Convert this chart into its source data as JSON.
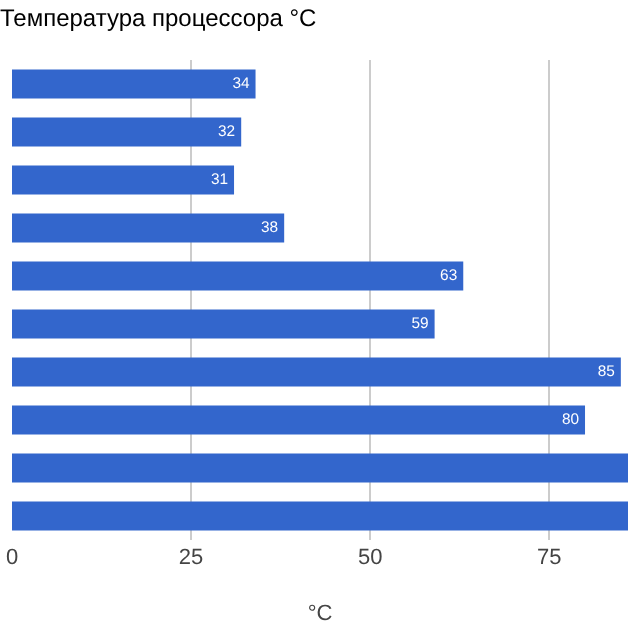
{
  "chart_data": {
    "type": "bar",
    "orientation": "horizontal",
    "title": "Температура процессора °C",
    "xlabel": "°C",
    "categories": [
      null,
      null,
      null,
      null,
      null,
      null,
      null,
      null,
      null,
      null
    ],
    "values": [
      34,
      32,
      31,
      38,
      63,
      59,
      85,
      80,
      86,
      86
    ],
    "value_labels": [
      "34",
      "32",
      "31",
      "38",
      "63",
      "59",
      "85",
      "80",
      null,
      null
    ],
    "color": "#3366cc",
    "xlim": [
      0,
      86
    ],
    "xticks": [
      0,
      25,
      50,
      75
    ],
    "grid": "x"
  }
}
